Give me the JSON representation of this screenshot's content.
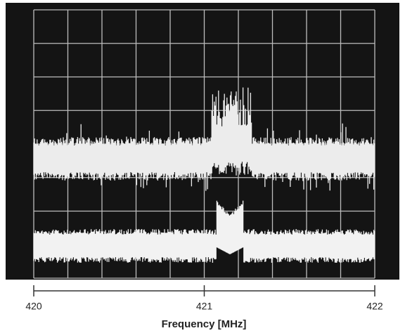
{
  "chart_data": {
    "type": "spectrum",
    "xlabel": "Frequency [MHz]",
    "xlim": [
      420,
      422
    ],
    "xticks": [
      420,
      421,
      422
    ]
  }
}
